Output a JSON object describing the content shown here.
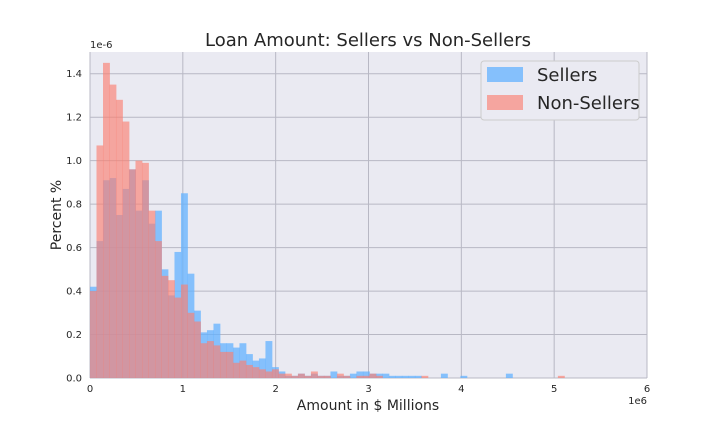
{
  "chart_data": {
    "type": "bar",
    "title": "Loan Amount: Sellers vs Non-Sellers",
    "xlabel": "Amount in $ Millions",
    "ylabel": "Percent %",
    "x_offset_text": "1e6",
    "y_offset_text": "1e-6",
    "xlim": [
      0,
      6
    ],
    "ylim": [
      0,
      1.5
    ],
    "x_ticks": [
      0,
      1,
      2,
      3,
      4,
      5,
      6
    ],
    "x_tick_labels": [
      "0",
      "1",
      "2",
      "3",
      "4",
      "5",
      "6"
    ],
    "y_ticks": [
      0.0,
      0.2,
      0.4,
      0.6,
      0.8,
      1.0,
      1.2,
      1.4
    ],
    "y_tick_labels": [
      "0.0",
      "0.2",
      "0.4",
      "0.6",
      "0.8",
      "1.0",
      "1.2",
      "1.4"
    ],
    "grid": true,
    "legend_position": "top-right",
    "bin_width": 0.07,
    "bins_start": [
      0.0,
      0.07,
      0.14,
      0.21,
      0.28,
      0.35,
      0.42,
      0.49,
      0.56,
      0.63,
      0.7,
      0.77,
      0.84,
      0.91,
      0.98,
      1.05,
      1.12,
      1.19,
      1.26,
      1.33,
      1.4,
      1.47,
      1.54,
      1.61,
      1.68,
      1.75,
      1.82,
      1.89,
      1.96,
      2.03,
      2.1,
      2.17,
      2.24,
      2.31,
      2.38,
      2.45,
      2.52,
      2.59,
      2.66,
      2.73,
      2.8,
      2.87,
      2.94,
      3.01,
      3.08,
      3.15,
      3.22,
      3.29,
      3.36,
      3.43,
      3.5,
      3.57,
      3.64,
      3.71,
      3.78,
      3.85,
      3.92,
      3.99,
      4.06,
      4.13,
      4.2,
      4.27,
      4.34,
      4.41,
      4.48,
      4.55,
      4.62,
      4.69,
      4.76,
      4.83,
      4.9,
      4.97,
      5.04,
      5.11,
      5.18,
      5.25,
      5.32,
      5.39,
      5.46,
      5.53,
      5.6,
      5.67,
      5.74,
      5.81,
      5.88,
      5.95
    ],
    "series": [
      {
        "name": "Sellers",
        "color": "#63b2ff",
        "opacity": 0.75,
        "values": [
          0.42,
          0.63,
          0.91,
          0.92,
          0.75,
          0.87,
          0.96,
          0.77,
          0.91,
          0.71,
          0.77,
          0.5,
          0.38,
          0.58,
          0.85,
          0.48,
          0.31,
          0.21,
          0.22,
          0.25,
          0.16,
          0.16,
          0.14,
          0.16,
          0.11,
          0.08,
          0.09,
          0.17,
          0.05,
          0.03,
          0.01,
          0.01,
          0.02,
          0.01,
          0.02,
          0.01,
          0.01,
          0.03,
          0.01,
          0.01,
          0.02,
          0.03,
          0.03,
          0.02,
          0.02,
          0.02,
          0.01,
          0.01,
          0.01,
          0.01,
          0.01,
          0.0,
          0.0,
          0.0,
          0.02,
          0.0,
          0.0,
          0.01,
          0.0,
          0.0,
          0.0,
          0.0,
          0.0,
          0.0,
          0.02,
          0.0,
          0.0,
          0.0,
          0.0,
          0.0,
          0.0,
          0.0,
          0.0,
          0.0,
          0.0,
          0.0,
          0.0,
          0.0,
          0.0,
          0.0,
          0.0,
          0.0,
          0.0,
          0.0,
          0.0,
          0.0
        ]
      },
      {
        "name": "Non-Sellers",
        "color": "#fa8072",
        "opacity": 0.65,
        "values": [
          0.4,
          1.07,
          1.45,
          1.35,
          1.28,
          1.18,
          0.96,
          1.0,
          0.99,
          0.77,
          0.63,
          0.47,
          0.45,
          0.37,
          0.43,
          0.3,
          0.26,
          0.16,
          0.17,
          0.15,
          0.12,
          0.12,
          0.07,
          0.08,
          0.06,
          0.05,
          0.04,
          0.03,
          0.04,
          0.02,
          0.02,
          0.01,
          0.02,
          0.01,
          0.03,
          0.01,
          0.01,
          0.0,
          0.02,
          0.01,
          0.0,
          0.01,
          0.01,
          0.02,
          0.01,
          0.0,
          0.0,
          0.0,
          0.0,
          0.0,
          0.0,
          0.01,
          0.0,
          0.0,
          0.0,
          0.0,
          0.0,
          0.0,
          0.0,
          0.0,
          0.0,
          0.0,
          0.0,
          0.0,
          0.0,
          0.0,
          0.0,
          0.0,
          0.0,
          0.0,
          0.0,
          0.0,
          0.01,
          0.0,
          0.0,
          0.0,
          0.0,
          0.0,
          0.0,
          0.0,
          0.0,
          0.0,
          0.0,
          0.0,
          0.0,
          0.0
        ]
      }
    ]
  }
}
